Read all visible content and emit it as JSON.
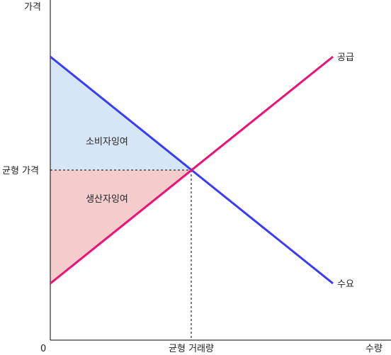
{
  "axes": {
    "y_label": "가격",
    "x_label": "수량",
    "origin_label": "0",
    "eq_price_label": "균형 가격",
    "eq_quantity_label": "균형 거래량"
  },
  "curves": {
    "supply_label": "공급",
    "demand_label": "수요",
    "supply_color": "#ee1177",
    "demand_color": "#3b3bff"
  },
  "regions": {
    "consumer_surplus_label": "소비자잉여",
    "producer_surplus_label": "생산자잉여",
    "consumer_surplus_color": "#d6e6f7",
    "producer_surplus_color": "#f5cccc"
  }
}
